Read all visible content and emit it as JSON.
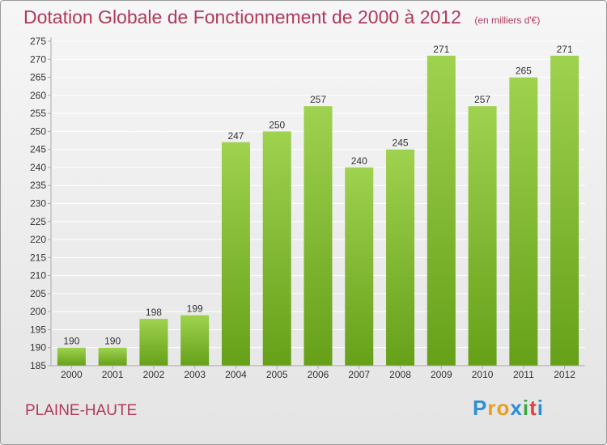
{
  "header": {
    "title": "Dotation Globale de Fonctionnement de 2000 à 2012",
    "unit": "(en milliers d'€)"
  },
  "footer": {
    "place": "PLAINE-HAUTE",
    "logo": {
      "letters": [
        "P",
        "r",
        "o",
        "x",
        "i",
        "t",
        "i"
      ],
      "colors": [
        "#2e8fd4",
        "#e8a020",
        "#e8a020",
        "#2e8fd4",
        "#3aa640",
        "#e04040",
        "#2e8fd4"
      ]
    }
  },
  "chart_data": {
    "type": "bar",
    "categories": [
      "2000",
      "2001",
      "2002",
      "2003",
      "2004",
      "2005",
      "2006",
      "2007",
      "2008",
      "2009",
      "2010",
      "2011",
      "2012"
    ],
    "values": [
      190,
      190,
      198,
      199,
      247,
      250,
      257,
      240,
      245,
      271,
      257,
      265,
      271
    ],
    "ylim": [
      185,
      275
    ],
    "yticks": [
      185,
      190,
      195,
      200,
      205,
      210,
      215,
      220,
      225,
      230,
      235,
      240,
      245,
      250,
      255,
      260,
      265,
      270,
      275
    ],
    "grid": true,
    "colors": {
      "bar_top": "#9fd24f",
      "bar_bottom": "#66a019",
      "grid": "#ffffff",
      "axis": "#aaaaaa",
      "text": "#333333"
    }
  }
}
